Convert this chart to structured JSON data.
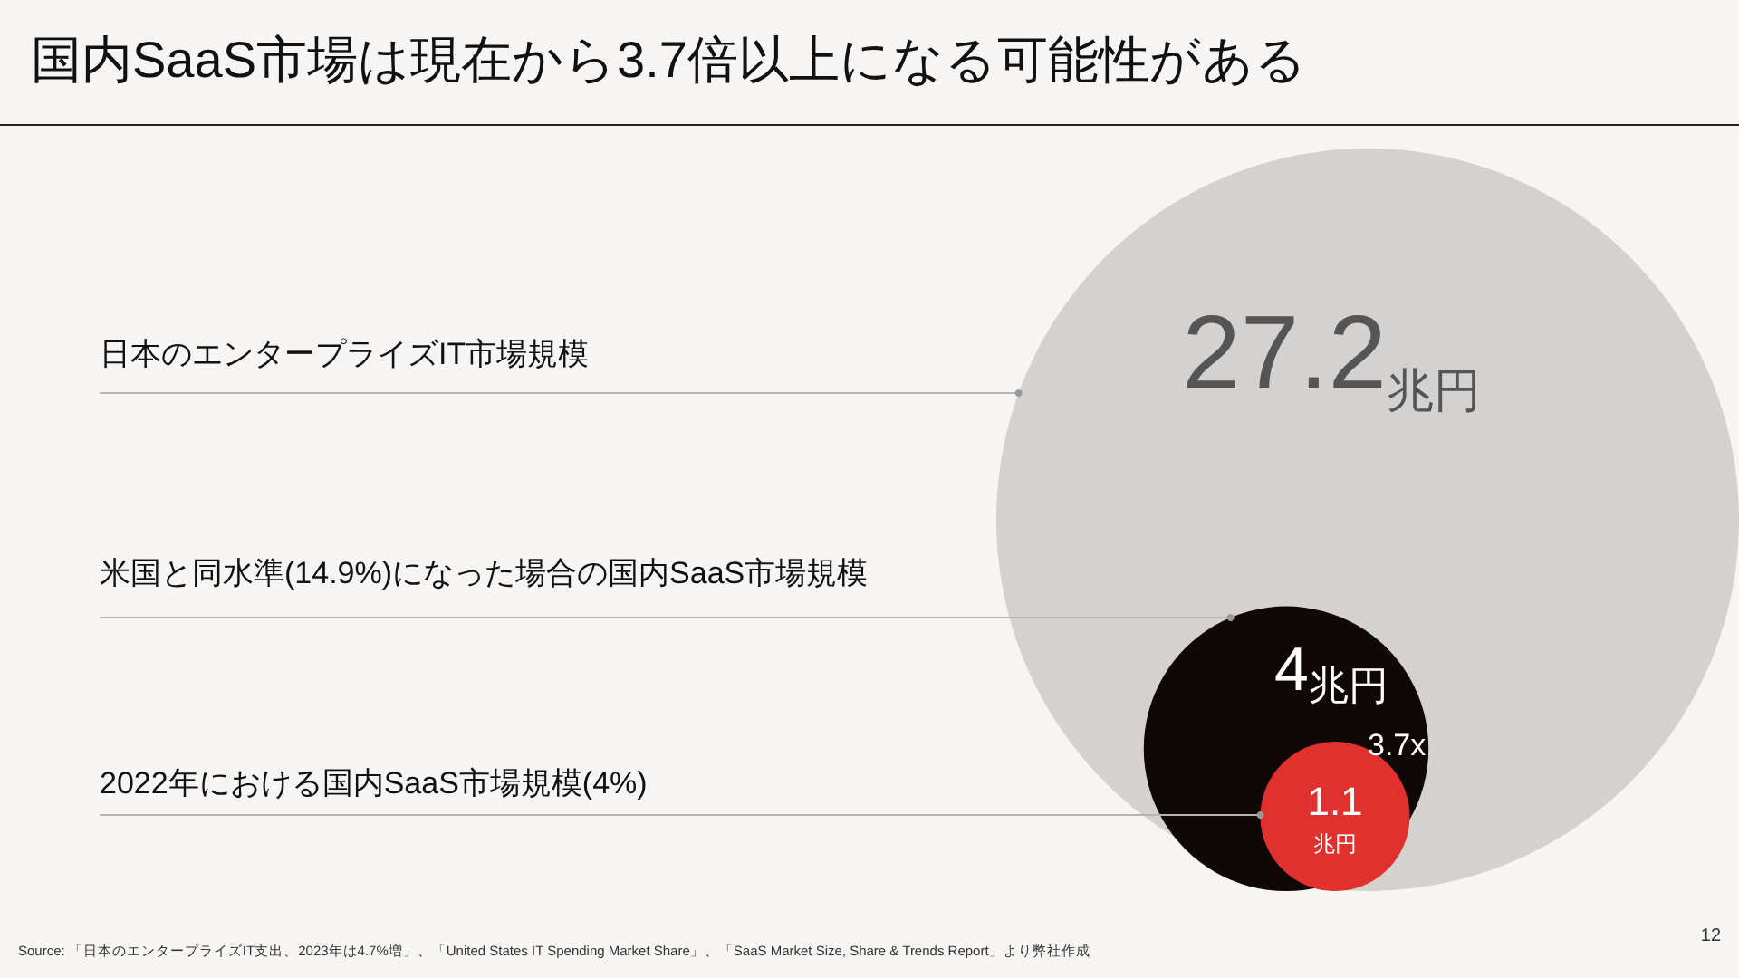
{
  "chart_data": {
    "type": "other",
    "title": "国内SaaS市場は現在から3.7倍以上になる可能性がある",
    "categories": [
      "日本のエンタープライズIT市場規模",
      "米国と同水準(14.9%)になった場合の国内SaaS市場規模",
      "2022年における国内SaaS市場規模(4%)"
    ],
    "values": [
      27.2,
      4,
      1.1
    ],
    "colors": [
      "#d3d2d1",
      "#100707",
      "#e0312f"
    ],
    "value_labels": [
      "27.2兆円",
      "4兆円",
      "1.1兆円"
    ],
    "annotations": [
      "3.7x",
      "12",
      "Source: 「日本のエンタープライズIT支出、2023年は4.7%増」、「United States IT Spending Market Share」、「SaaS Market Size, Share & Trends Report」より弊社作成"
    ]
  }
}
